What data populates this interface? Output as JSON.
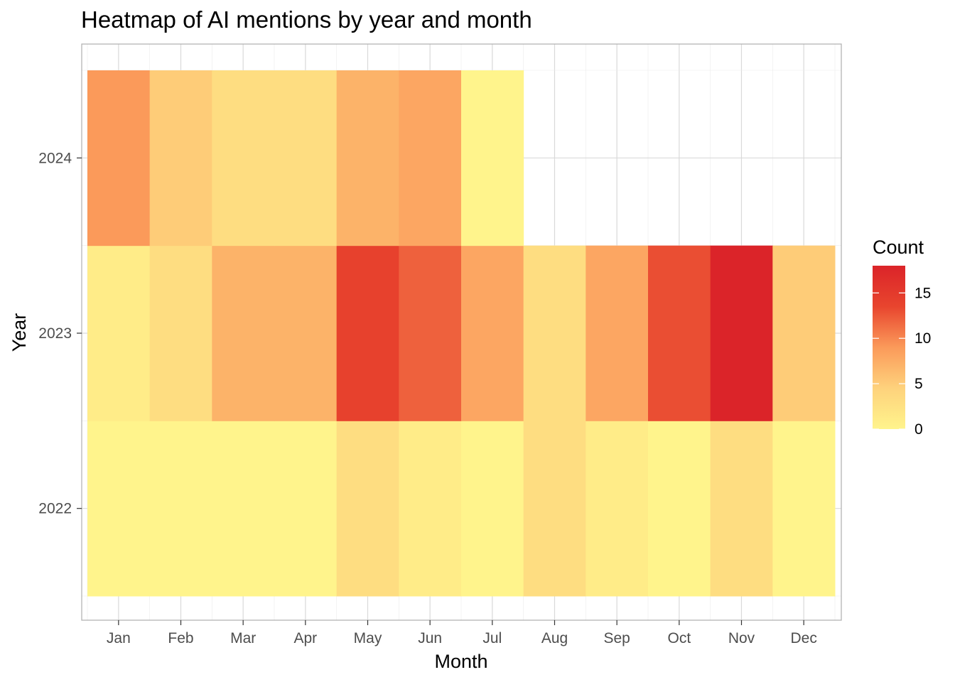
{
  "chart_data": {
    "type": "heatmap",
    "title": "Heatmap of AI mentions by year and month",
    "xlabel": "Month",
    "ylabel": "Year",
    "x_categories": [
      "Jan",
      "Feb",
      "Mar",
      "Apr",
      "May",
      "Jun",
      "Jul",
      "Aug",
      "Sep",
      "Oct",
      "Nov",
      "Dec"
    ],
    "y_categories": [
      "2022",
      "2023",
      "2024"
    ],
    "values": {
      "2022": [
        0,
        0,
        0,
        0,
        3,
        1,
        0,
        3,
        1,
        0,
        3,
        0
      ],
      "2023": [
        1,
        3,
        7,
        7,
        14,
        12,
        8,
        3,
        8,
        13,
        18,
        5
      ],
      "2024": [
        9,
        5,
        3,
        3,
        7,
        8,
        0,
        null,
        null,
        null,
        null,
        null
      ]
    },
    "grid": true,
    "legend": {
      "title": "Count",
      "placement": "right",
      "range": [
        0,
        18
      ],
      "breaks": [
        0,
        5,
        10,
        15
      ],
      "labels": [
        "0",
        "5",
        "10",
        "15"
      ]
    },
    "colors": {
      "scale": [
        "#fff48c",
        "#fed27c",
        "#fb9a5a",
        "#e8452e",
        "#db2429"
      ],
      "grid": "#d9d9d9",
      "panel_border": "#b3b3b3",
      "tick_text": "#4d4d4d"
    }
  }
}
